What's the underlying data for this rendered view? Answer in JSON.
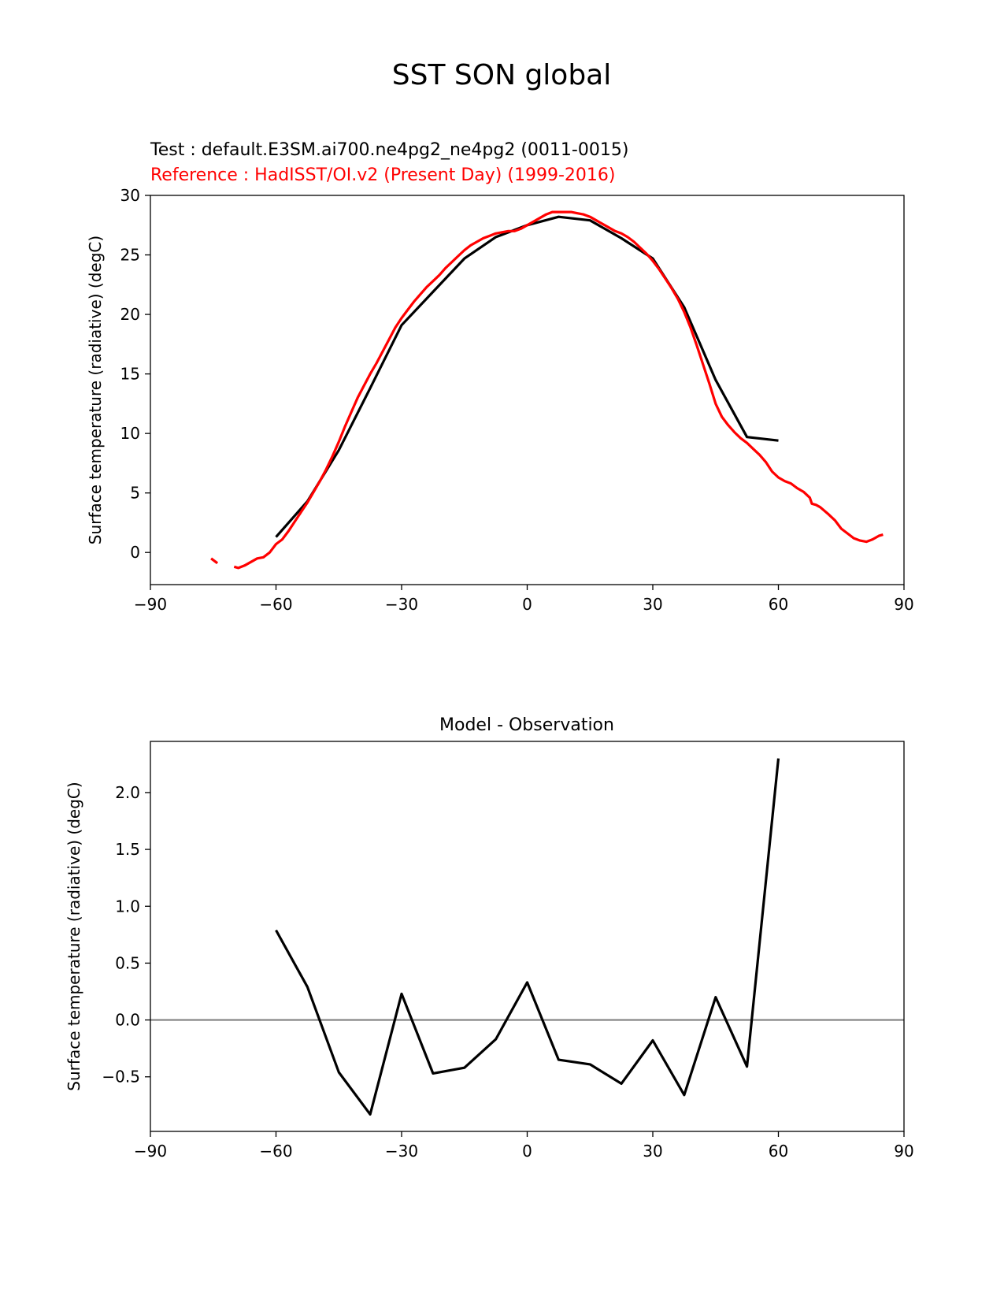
{
  "figure": {
    "suptitle": "SST SON global",
    "test_label": "Test : default.E3SM.ai700.ne4pg2_ne4pg2 (0011-0015)",
    "ref_label": "Reference : HadISST/OI.v2 (Present Day) (1999-2016)",
    "colors": {
      "test": "#000000",
      "reference": "#ff0000",
      "zero_line": "#808080"
    }
  },
  "chart_data": [
    {
      "type": "line",
      "title": "",
      "xlabel": "",
      "ylabel": "Surface temperature (radiative) (degC)",
      "xlim": [
        -90,
        90
      ],
      "ylim": [
        -2.7,
        30
      ],
      "xticks": [
        -90,
        -60,
        -30,
        0,
        30,
        60,
        90
      ],
      "xtick_labels": [
        "−90",
        "−60",
        "−30",
        "0",
        "30",
        "60",
        "90"
      ],
      "yticks": [
        0,
        5,
        10,
        15,
        20,
        25,
        30
      ],
      "ytick_labels": [
        "0",
        "5",
        "10",
        "15",
        "20",
        "25",
        "30"
      ],
      "grid": false,
      "series": [
        {
          "name": "Test : default.E3SM.ai700.ne4pg2_ne4pg2 (0011-0015)",
          "color": "#000000",
          "x": [
            -60,
            -52.5,
            -45,
            -37.5,
            -30,
            -22.5,
            -15,
            -7.5,
            0,
            7.5,
            15,
            22.5,
            30,
            37.5,
            45,
            52.5,
            60
          ],
          "y": [
            1.3,
            4.3,
            8.6,
            13.8,
            19.1,
            21.9,
            24.7,
            26.5,
            27.5,
            28.2,
            27.9,
            26.4,
            24.7,
            20.6,
            14.5,
            9.7,
            9.4
          ]
        },
        {
          "name": "Reference : HadISST/OI.v2 (Present Day) (1999-2016)",
          "color": "#ff0000",
          "segments": [
            {
              "x": [
                -75.5,
                -74
              ],
              "y": [
                -0.5,
                -0.9
              ]
            },
            {
              "x": [
                -70,
                -69,
                -67.5,
                -66,
                -64.5,
                -63,
                -61.5,
                -60,
                -58.5,
                -57,
                -55.5,
                -54,
                -52.5,
                -51,
                -49.5,
                -48,
                -46.5,
                -45,
                -43.5,
                -42,
                -40.5,
                -39,
                -37.5,
                -36,
                -34.5,
                -33,
                -31.5,
                -30,
                -28.5,
                -27,
                -25.5,
                -24,
                -22.5,
                -21,
                -19.5,
                -18,
                -16.5,
                -15,
                -13.5,
                -12,
                -10.5,
                -9,
                -7.5,
                -6,
                -4.5,
                -3,
                -1.5,
                0,
                1.5,
                3,
                4.5,
                6,
                7.5,
                9,
                10.5,
                12,
                13.5,
                15,
                16.5,
                18,
                19.5,
                21,
                22.5,
                24,
                25.5,
                27,
                28.5,
                30,
                31.5,
                33,
                34.5,
                36,
                37.5,
                39,
                40.5,
                42,
                43.5,
                45,
                46.5,
                48,
                49.5,
                51,
                52.5,
                54,
                55.5,
                57,
                58.5,
                60,
                61.5,
                63,
                64.5,
                66,
                67.5,
                68,
                69,
                70,
                72,
                73.5,
                75,
                76.5,
                78,
                79.5,
                81,
                82.5,
                84,
                85
              ],
              "y": [
                -1.2,
                -1.3,
                -1.1,
                -0.8,
                -0.5,
                -0.4,
                0,
                0.7,
                1.1,
                1.8,
                2.6,
                3.4,
                4.2,
                5.1,
                6.0,
                7.0,
                8.1,
                9.3,
                10.6,
                11.8,
                13.0,
                14.0,
                15.0,
                15.9,
                16.9,
                17.9,
                18.9,
                19.7,
                20.4,
                21.1,
                21.7,
                22.3,
                22.8,
                23.3,
                23.9,
                24.4,
                24.9,
                25.4,
                25.8,
                26.1,
                26.4,
                26.6,
                26.8,
                26.9,
                27.0,
                27.0,
                27.2,
                27.5,
                27.8,
                28.1,
                28.4,
                28.6,
                28.6,
                28.6,
                28.6,
                28.5,
                28.4,
                28.2,
                27.9,
                27.6,
                27.3,
                27.0,
                26.8,
                26.5,
                26.1,
                25.6,
                25.1,
                24.5,
                23.8,
                23.0,
                22.2,
                21.3,
                20.2,
                18.9,
                17.4,
                15.8,
                14.2,
                12.5,
                11.4,
                10.7,
                10.1,
                9.6,
                9.2,
                8.7,
                8.2,
                7.6,
                6.8,
                6.3,
                6.0,
                5.8,
                5.4,
                5.1,
                4.6,
                4.1,
                4.0,
                3.8,
                3.2,
                2.7,
                2.0,
                1.6,
                1.2,
                1.0,
                0.9,
                1.1,
                1.4,
                1.5
              ]
            }
          ]
        }
      ]
    },
    {
      "type": "line",
      "title": "Model - Observation",
      "xlabel": "",
      "ylabel": "Surface temperature (radiative) (degC)",
      "xlim": [
        -90,
        90
      ],
      "ylim": [
        -0.98,
        2.45
      ],
      "xticks": [
        -90,
        -60,
        -30,
        0,
        30,
        60,
        90
      ],
      "xtick_labels": [
        "−90",
        "−60",
        "−30",
        "0",
        "30",
        "60",
        "90"
      ],
      "yticks": [
        -0.5,
        0.0,
        0.5,
        1.0,
        1.5,
        2.0
      ],
      "ytick_labels": [
        "−0.5",
        "0.0",
        "0.5",
        "1.0",
        "1.5",
        "2.0"
      ],
      "grid": false,
      "zero_line": 0.0,
      "series": [
        {
          "color": "#000000",
          "x": [
            -60,
            -52.5,
            -45,
            -37.5,
            -30,
            -22.5,
            -15,
            -7.5,
            0,
            7.5,
            15,
            22.5,
            30,
            37.5,
            45,
            52.5,
            60
          ],
          "y": [
            0.79,
            0.29,
            -0.46,
            -0.83,
            0.23,
            -0.47,
            -0.42,
            -0.17,
            0.33,
            -0.35,
            -0.39,
            -0.56,
            -0.18,
            -0.66,
            0.2,
            -0.41,
            2.3
          ]
        }
      ]
    }
  ]
}
